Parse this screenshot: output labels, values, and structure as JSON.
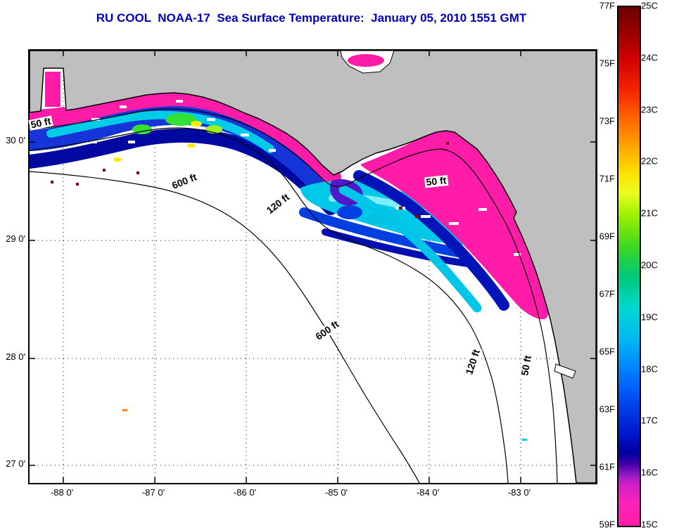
{
  "title": "RU COOL  NOAA-17  Sea Surface Temperature:  January 05, 2010 1551 GMT",
  "axes": {
    "x_tick_labels": [
      "-88 0'",
      "-87 0'",
      "-86 0'",
      "-85 0'",
      "-84 0'",
      "-83 0'"
    ],
    "y_tick_labels": [
      "30 0'",
      "29 0'",
      "28 0'",
      "27 0'"
    ]
  },
  "contour_labels": [
    "50 ft",
    "600 ft",
    "120 ft",
    "50 ft",
    "600 ft",
    "120 ft",
    "50 ft"
  ],
  "colorbar": {
    "fahrenheit_labels": [
      "77F",
      "75F",
      "73F",
      "71F",
      "69F",
      "67F",
      "65F",
      "63F",
      "61F",
      "59F"
    ],
    "celsius_labels": [
      "25C",
      "24C",
      "23C",
      "22C",
      "21C",
      "20C",
      "19C",
      "18C",
      "17C",
      "16C",
      "15C"
    ]
  },
  "colors": {
    "title_text": "#0000bb",
    "land_gray": "#bfbfbf",
    "no_data_white": "#ffffff",
    "cold_pink": "#ff1ca8",
    "deep_blue": "#0018d0",
    "cyan": "#00d0e8",
    "hot_dark_red": "#6b0000"
  },
  "chart_data": {
    "type": "heatmap",
    "title": "RU COOL  NOAA-17  Sea Surface Temperature:  January 05, 2010 1551 GMT",
    "x_axis": {
      "tick_labels": [
        "-88 0'",
        "-87 0'",
        "-86 0'",
        "-85 0'",
        "-84 0'",
        "-83 0'"
      ],
      "approx_range_deg_lon": [
        -88.4,
        -82.3
      ]
    },
    "y_axis": {
      "tick_labels": [
        "30 0'",
        "29 0'",
        "28 0'",
        "27 0'"
      ],
      "approx_range_deg_lat": [
        26.9,
        30.85
      ]
    },
    "grid": "dotted",
    "colorbar": {
      "orientation": "vertical-right",
      "fahrenheit_ticks": [
        77,
        75,
        73,
        71,
        69,
        67,
        65,
        63,
        61,
        59
      ],
      "celsius_ticks": [
        25,
        24,
        23,
        22,
        21,
        20,
        19,
        18,
        17,
        16,
        15
      ],
      "range_f": [
        59,
        77
      ],
      "range_c": [
        15,
        25
      ],
      "colormap_top_to_bottom": [
        "#6b0000",
        "#d00000",
        "#ff6a00",
        "#ffe000",
        "#a0f000",
        "#40d820",
        "#00d8d0",
        "#0080ff",
        "#0018d0",
        "#0000a0",
        "#8818c0",
        "#ff1ca8"
      ]
    },
    "depth_contours_ft": [
      50,
      120,
      600
    ],
    "features": [
      "Gray land mask: northern Gulf of Mexico coast and Florida peninsula",
      "Coldest water (pink/magenta, ~59-61F / 15-16C) hugging the coastline and covering the Florida Big Bend shelf",
      "Cool blue-to-cyan bands (~61-67F / 16-19C) just offshore, with green/yellow mottling west of -86",
      "White offshore areas: no data / cloud cover",
      "Bathymetry contours labeled 50 ft, 120 ft, 600 ft"
    ]
  }
}
